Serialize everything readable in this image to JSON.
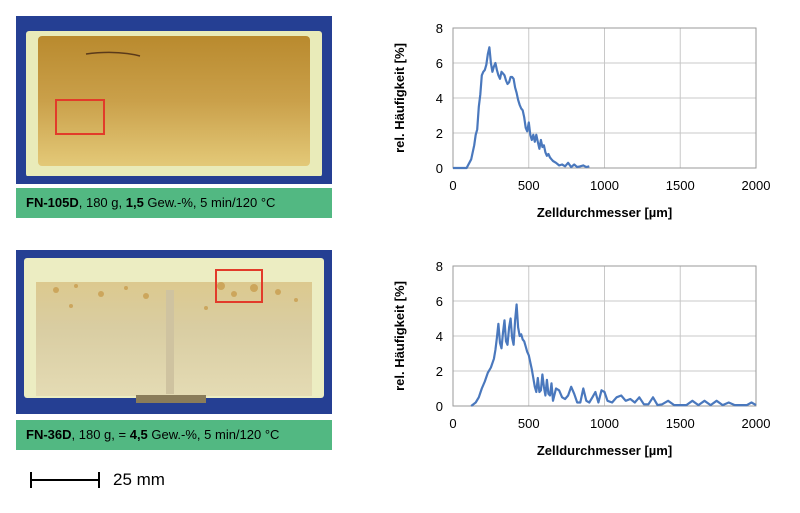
{
  "panels": [
    {
      "caption": {
        "sample": "FN-105D",
        "mass": ", 180 g, ",
        "pre": "",
        "conc": "1,5",
        "rest": " Gew.-%, 5 min/120 °C"
      },
      "photo": {
        "colors": {
          "frame": "#e8eab8",
          "core": "#c9a04a"
        }
      },
      "chart_data": {
        "type": "line",
        "title": "",
        "xlabel": "Zelldurchmesser [µm]",
        "ylabel": "rel. Häufigkeit [%]",
        "xlim": [
          0,
          2000
        ],
        "ylim": [
          0,
          8
        ],
        "xticks": [
          0,
          500,
          1000,
          1500,
          2000
        ],
        "yticks": [
          0,
          2,
          4,
          6,
          8
        ],
        "grid": true,
        "series": [
          {
            "color": "#4a78bd",
            "x": [
              0,
              90,
              120,
              140,
              150,
              160,
              170,
              180,
              190,
              200,
              210,
              220,
              230,
              240,
              250,
              260,
              270,
              280,
              290,
              300,
              310,
              320,
              330,
              340,
              350,
              360,
              370,
              380,
              390,
              400,
              410,
              420,
              430,
              440,
              450,
              460,
              470,
              480,
              490,
              500,
              510,
              520,
              530,
              540,
              550,
              560,
              570,
              580,
              590,
              600,
              610,
              620,
              630,
              640,
              650,
              660,
              680,
              700,
              720,
              740,
              760,
              780,
              800,
              820,
              840,
              860,
              880,
              900
            ],
            "y": [
              0,
              0,
              0.5,
              1.3,
              1.9,
              2.2,
              3.5,
              4.2,
              5.3,
              5.5,
              5.6,
              5.9,
              6.5,
              6.9,
              6.0,
              5.5,
              5.8,
              6.0,
              5.6,
              5.3,
              5.1,
              5.5,
              5.4,
              5.3,
              5.0,
              4.8,
              4.9,
              5.2,
              5.2,
              5.1,
              4.6,
              4.3,
              3.9,
              3.6,
              3.4,
              3.3,
              2.9,
              2.3,
              2.1,
              2.6,
              1.9,
              1.6,
              1.9,
              1.5,
              1.9,
              1.5,
              1.1,
              1.6,
              1.2,
              1.3,
              0.9,
              0.7,
              0.8,
              0.6,
              0.5,
              0.4,
              0.3,
              0.15,
              0.2,
              0.1,
              0.3,
              0.05,
              0.2,
              0.05,
              0.1,
              0.15,
              0.05,
              0.1
            ]
          }
        ]
      }
    },
    {
      "caption": {
        "sample": "FN-36D",
        "mass": ", 180 g, ",
        "pre": "= ",
        "conc": "4,5",
        "rest": " Gew.-%, 5 min/120 °C"
      },
      "photo": {
        "colors": {
          "frame": "#ebecc0",
          "core": "#d8cfa0"
        }
      },
      "chart_data": {
        "type": "line",
        "title": "",
        "xlabel": "Zelldurchmesser [µm]",
        "ylabel": "rel. Häufigkeit [%]",
        "xlim": [
          0,
          2000
        ],
        "ylim": [
          0,
          8
        ],
        "xticks": [
          0,
          500,
          1000,
          1500,
          2000
        ],
        "yticks": [
          0,
          2,
          4,
          6,
          8
        ],
        "grid": true,
        "series": [
          {
            "color": "#4a78bd",
            "x": [
              120,
              150,
              170,
              190,
              210,
              230,
              250,
              270,
              280,
              290,
              300,
              310,
              320,
              330,
              340,
              350,
              360,
              370,
              380,
              390,
              400,
              410,
              420,
              430,
              440,
              450,
              460,
              470,
              480,
              490,
              500,
              510,
              520,
              530,
              540,
              550,
              560,
              570,
              580,
              590,
              600,
              610,
              620,
              630,
              640,
              650,
              660,
              680,
              700,
              720,
              740,
              760,
              780,
              800,
              820,
              840,
              860,
              880,
              900,
              920,
              940,
              960,
              980,
              1000,
              1020,
              1050,
              1080,
              1110,
              1140,
              1170,
              1200,
              1230,
              1260,
              1290,
              1320,
              1350,
              1380,
              1420,
              1460,
              1500,
              1540,
              1580,
              1620,
              1660,
              1700,
              1740,
              1780,
              1820,
              1860,
              1900,
              1940,
              1970,
              2000
            ],
            "y": [
              0,
              0.2,
              0.5,
              1.0,
              1.4,
              1.9,
              2.2,
              2.7,
              3.2,
              3.9,
              4.7,
              3.6,
              3.3,
              4.2,
              4.9,
              3.7,
              3.5,
              4.5,
              5.0,
              3.9,
              3.5,
              4.9,
              5.8,
              4.5,
              4.0,
              4.1,
              3.8,
              3.7,
              3.4,
              3.1,
              2.9,
              2.5,
              2.1,
              1.6,
              1.1,
              0.8,
              1.6,
              0.8,
              0.9,
              1.8,
              1.1,
              0.6,
              1.5,
              0.7,
              0.6,
              1.3,
              0.3,
              1.0,
              0.9,
              0.5,
              0.4,
              0.6,
              1.1,
              0.7,
              0.2,
              0.2,
              1.0,
              0.3,
              0.2,
              0.5,
              0.8,
              0.2,
              0.9,
              0.8,
              0.3,
              0.2,
              0.5,
              0.6,
              0.3,
              0.4,
              0.2,
              0.5,
              0.1,
              0.1,
              0.5,
              0.05,
              0.1,
              0.3,
              0.05,
              0.05,
              0.05,
              0.3,
              0.05,
              0.3,
              0.05,
              0.3,
              0.05,
              0.2,
              0.05,
              0.05,
              0.05,
              0.2,
              0.05
            ]
          }
        ]
      }
    }
  ],
  "scale": {
    "label": "25 mm"
  }
}
